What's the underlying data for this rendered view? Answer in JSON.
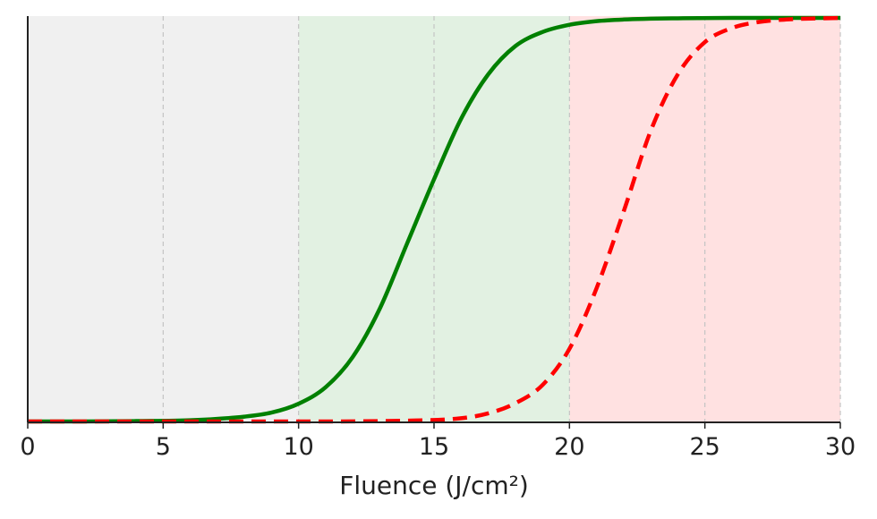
{
  "chart_data": {
    "type": "line",
    "xlabel": "Fluence (J/cm²)",
    "ylabel": "",
    "xlim": [
      0,
      30
    ],
    "ylim": [
      0,
      1
    ],
    "x_ticks": [
      0,
      5,
      10,
      15,
      20,
      25,
      30
    ],
    "x_tick_labels": [
      "0",
      "5",
      "10",
      "15",
      "20",
      "25",
      "30"
    ],
    "grid": "vertical dashed",
    "shaded_regions": [
      {
        "x": [
          0,
          10
        ],
        "color": "#f0f0f0"
      },
      {
        "x": [
          10,
          20
        ],
        "color": "#e2f1e2"
      },
      {
        "x": [
          20,
          30
        ],
        "color": "#ffe1e1"
      }
    ],
    "series": [
      {
        "style": "solid",
        "color": "#008000",
        "x": [
          0,
          2,
          4,
          6,
          8,
          9,
          10,
          11,
          12,
          13,
          14,
          15,
          16,
          17,
          18,
          19,
          20,
          21,
          22,
          24,
          26,
          28,
          30
        ],
        "y": [
          0.0,
          0.0,
          0.001,
          0.003,
          0.012,
          0.022,
          0.044,
          0.085,
          0.16,
          0.28,
          0.44,
          0.6,
          0.75,
          0.86,
          0.93,
          0.965,
          0.983,
          0.992,
          0.996,
          0.999,
          1.0,
          1.0,
          1.0
        ]
      },
      {
        "style": "dashed",
        "color": "#ff0000",
        "x": [
          0,
          5,
          10,
          14,
          16,
          17,
          18,
          19,
          20,
          21,
          22,
          23,
          24,
          25,
          26,
          27,
          28,
          30
        ],
        "y": [
          0.0,
          0.0,
          0.0,
          0.002,
          0.008,
          0.02,
          0.045,
          0.09,
          0.18,
          0.33,
          0.52,
          0.72,
          0.86,
          0.94,
          0.975,
          0.99,
          0.996,
          1.0
        ]
      }
    ]
  }
}
